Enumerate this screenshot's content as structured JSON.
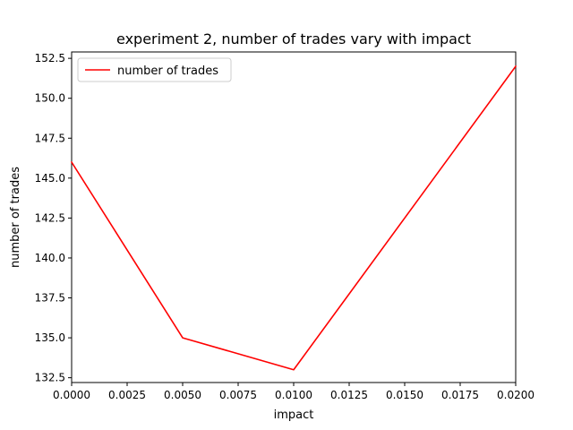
{
  "chart_data": {
    "type": "line",
    "title": "experiment 2, number of trades vary with impact",
    "xlabel": "impact",
    "ylabel": "number of trades",
    "xlim": [
      0.0,
      0.02
    ],
    "ylim": [
      132.2,
      152.9
    ],
    "x_ticks": [
      0.0,
      0.0025,
      0.005,
      0.0075,
      0.01,
      0.0125,
      0.015,
      0.0175,
      0.02
    ],
    "x_tick_labels": [
      "0.0000",
      "0.0025",
      "0.0050",
      "0.0075",
      "0.0100",
      "0.0125",
      "0.0150",
      "0.0175",
      "0.0200"
    ],
    "y_ticks": [
      132.5,
      135.0,
      137.5,
      140.0,
      142.5,
      145.0,
      147.5,
      150.0,
      152.5
    ],
    "y_tick_labels": [
      "132.5",
      "135.0",
      "137.5",
      "140.0",
      "142.5",
      "145.0",
      "147.5",
      "150.0",
      "152.5"
    ],
    "grid": false,
    "legend": "top-left",
    "series": [
      {
        "name": "number of trades",
        "color": "#ff0000",
        "x": [
          0.0,
          0.005,
          0.01,
          0.02
        ],
        "y": [
          146,
          135,
          133,
          152
        ]
      }
    ]
  }
}
